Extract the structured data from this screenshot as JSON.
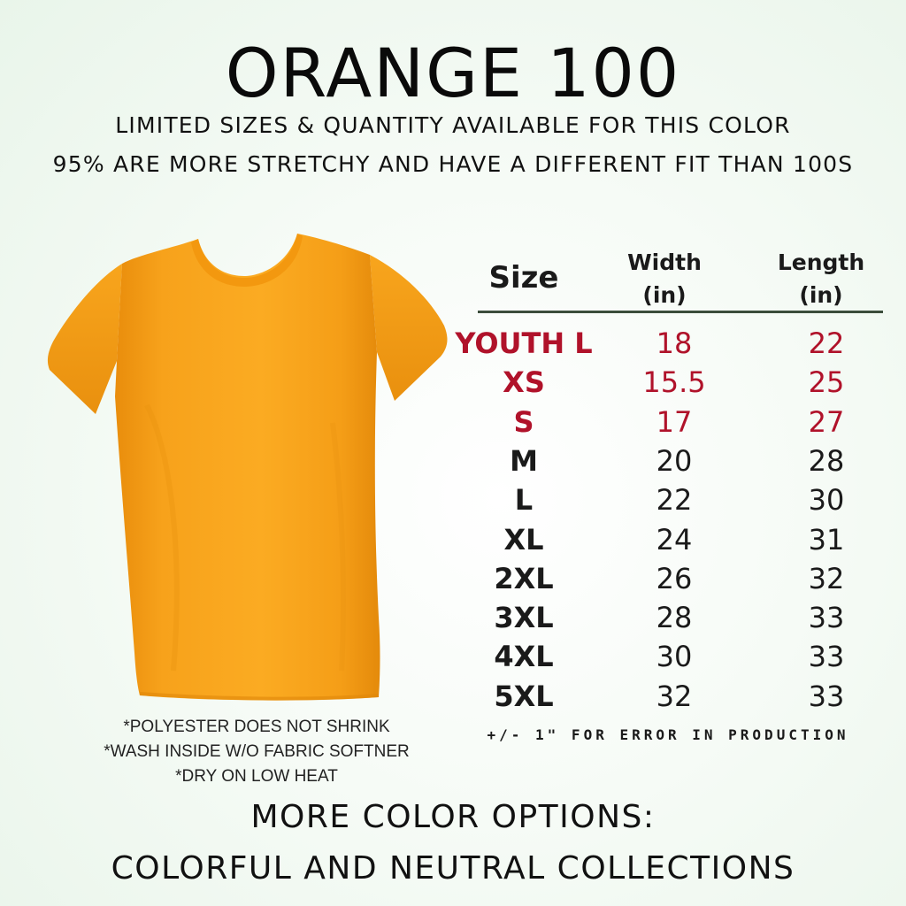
{
  "header": {
    "title": "ORANGE 100",
    "subtitle_1": "LIMITED SIZES & QUANTITY AVAILABLE FOR THIS COLOR",
    "subtitle_2": "95% ARE MORE STRETCHY AND HAVE A DIFFERENT FIT THAN 100S"
  },
  "product": {
    "image": "orange-tshirt",
    "shirt_color": "#f7a21b",
    "care": [
      "*POLYESTER DOES NOT SHRINK",
      "*WASH INSIDE W/O FABRIC SOFTNER",
      "*DRY ON LOW HEAT"
    ]
  },
  "size_chart": {
    "headers": {
      "size": "Size",
      "width": "Width",
      "width_unit": "(in)",
      "length": "Length",
      "length_unit": "(in)"
    },
    "highlight_color": "#b0122a",
    "normal_color": "#1a1a1a",
    "rows": [
      {
        "size": "YOUTH L",
        "width": "18",
        "length": "22",
        "highlight": true
      },
      {
        "size": "XS",
        "width": "15.5",
        "length": "25",
        "highlight": true
      },
      {
        "size": "S",
        "width": "17",
        "length": "27",
        "highlight": true
      },
      {
        "size": "M",
        "width": "20",
        "length": "28",
        "highlight": false
      },
      {
        "size": "L",
        "width": "22",
        "length": "30",
        "highlight": false
      },
      {
        "size": "XL",
        "width": "24",
        "length": "31",
        "highlight": false
      },
      {
        "size": "2XL",
        "width": "26",
        "length": "32",
        "highlight": false
      },
      {
        "size": "3XL",
        "width": "28",
        "length": "33",
        "highlight": false
      },
      {
        "size": "4XL",
        "width": "30",
        "length": "33",
        "highlight": false
      },
      {
        "size": "5XL",
        "width": "32",
        "length": "33",
        "highlight": false
      }
    ],
    "tolerance_note": "+/- 1\" FOR ERROR IN PRODUCTION"
  },
  "footer": {
    "line_1": "MORE COLOR OPTIONS:",
    "line_2": "COLORFUL AND NEUTRAL COLLECTIONS"
  }
}
